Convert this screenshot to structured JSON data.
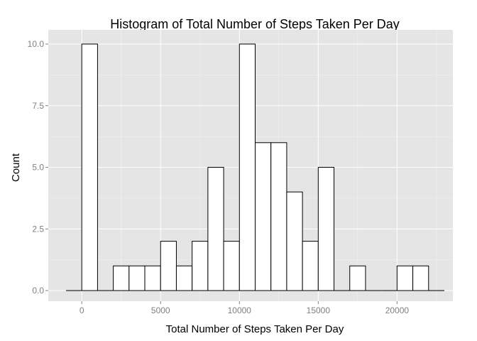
{
  "chart_data": {
    "type": "bar",
    "subtype": "histogram",
    "title": "Histogram of Total Number of Steps Taken Per Day",
    "xlabel": "Total Number of Steps Taken Per Day",
    "ylabel": "Count",
    "xlim": [
      -1000,
      23000
    ],
    "ylim": [
      0,
      10
    ],
    "x_ticks": [
      0,
      5000,
      10000,
      15000,
      20000
    ],
    "x_tick_labels": [
      "0",
      "5000",
      "10000",
      "15000",
      "20000"
    ],
    "y_ticks": [
      0,
      2.5,
      5,
      7.5,
      10
    ],
    "y_tick_labels": [
      "0.0",
      "2.5",
      "5.0",
      "7.5",
      "10.0"
    ],
    "grid": true,
    "bin_width": 1000,
    "bins": [
      {
        "start": -1000,
        "end": 0,
        "count": 0
      },
      {
        "start": 0,
        "end": 1000,
        "count": 10
      },
      {
        "start": 1000,
        "end": 2000,
        "count": 0
      },
      {
        "start": 2000,
        "end": 3000,
        "count": 1
      },
      {
        "start": 3000,
        "end": 4000,
        "count": 1
      },
      {
        "start": 4000,
        "end": 5000,
        "count": 1
      },
      {
        "start": 5000,
        "end": 6000,
        "count": 2
      },
      {
        "start": 6000,
        "end": 7000,
        "count": 1
      },
      {
        "start": 7000,
        "end": 8000,
        "count": 2
      },
      {
        "start": 8000,
        "end": 9000,
        "count": 5
      },
      {
        "start": 9000,
        "end": 10000,
        "count": 2
      },
      {
        "start": 10000,
        "end": 11000,
        "count": 10
      },
      {
        "start": 11000,
        "end": 12000,
        "count": 6
      },
      {
        "start": 12000,
        "end": 13000,
        "count": 6
      },
      {
        "start": 13000,
        "end": 14000,
        "count": 4
      },
      {
        "start": 14000,
        "end": 15000,
        "count": 2
      },
      {
        "start": 15000,
        "end": 16000,
        "count": 5
      },
      {
        "start": 16000,
        "end": 17000,
        "count": 0
      },
      {
        "start": 17000,
        "end": 18000,
        "count": 1
      },
      {
        "start": 18000,
        "end": 19000,
        "count": 0
      },
      {
        "start": 19000,
        "end": 20000,
        "count": 0
      },
      {
        "start": 20000,
        "end": 21000,
        "count": 1
      },
      {
        "start": 21000,
        "end": 22000,
        "count": 1
      },
      {
        "start": 22000,
        "end": 23000,
        "count": 0
      }
    ],
    "colors": {
      "panel_background": "#e5e5e5",
      "bar_fill": "#ffffff",
      "bar_outline": "#000000"
    }
  }
}
